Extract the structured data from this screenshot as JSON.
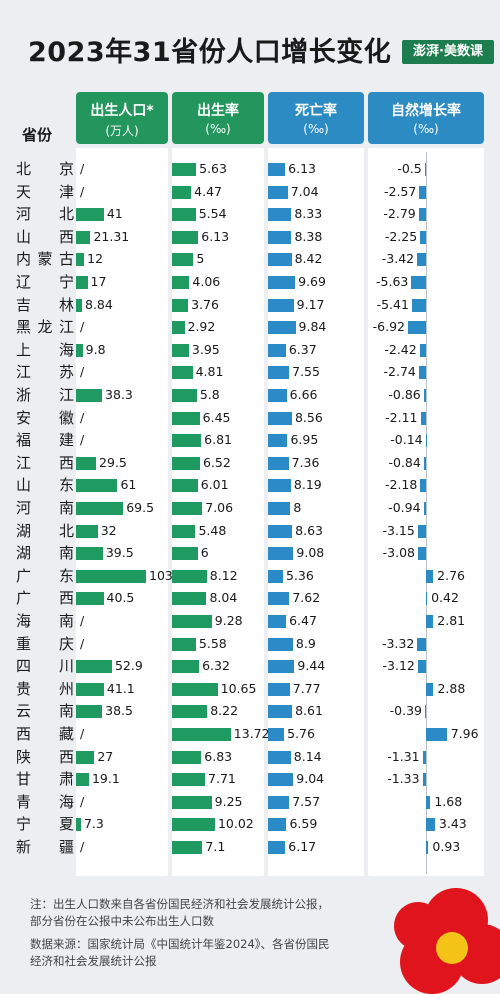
{
  "title": "2023年31省份人口增长变化",
  "logo_text": "澎湃·美数课",
  "row_header": "省份",
  "columns": [
    {
      "name": "出生人口*",
      "unit": "(万人)"
    },
    {
      "name": "出生率",
      "unit": "(‰)"
    },
    {
      "name": "死亡率",
      "unit": "(‰)"
    },
    {
      "name": "自然增长率",
      "unit": "(‰)"
    }
  ],
  "notes": {
    "note": "注：出生人口数来自各省份国民经济和社会发展统计公报，部分省份在公报中未公布出生人口数",
    "source": "数据来源：国家统计局《中国统计年鉴2024》、各省份国民经济和社会发展统计公报"
  },
  "colors": {
    "green": "#1f9a60",
    "blue": "#2b8bc6",
    "header_green": "#23965e",
    "header_blue": "#2d8bc4"
  },
  "chart_data": {
    "type": "table",
    "provinces": [
      "北京",
      "天津",
      "河北",
      "山西",
      "内蒙古",
      "辽宁",
      "吉林",
      "黑龙江",
      "上海",
      "江苏",
      "浙江",
      "安徽",
      "福建",
      "江西",
      "山东",
      "河南",
      "湖北",
      "湖南",
      "广东",
      "广西",
      "海南",
      "重庆",
      "四川",
      "贵州",
      "云南",
      "西藏",
      "陕西",
      "甘肃",
      "青海",
      "宁夏",
      "新疆"
    ],
    "births": [
      null,
      null,
      41,
      21.31,
      12,
      17,
      8.84,
      null,
      9.8,
      null,
      38.3,
      null,
      null,
      29.5,
      61,
      69.5,
      32,
      39.5,
      103,
      40.5,
      null,
      null,
      52.9,
      41.1,
      38.5,
      null,
      27,
      19.1,
      null,
      7.3,
      null
    ],
    "birth_rate": [
      5.63,
      4.47,
      5.54,
      6.13,
      5,
      4.06,
      3.76,
      2.92,
      3.95,
      4.81,
      5.8,
      6.45,
      6.81,
      6.52,
      6.01,
      7.06,
      5.48,
      6,
      8.12,
      8.04,
      9.28,
      5.58,
      6.32,
      10.65,
      8.22,
      13.72,
      6.83,
      7.71,
      9.25,
      10.02,
      7.1
    ],
    "death_rate": [
      6.13,
      7.04,
      8.33,
      8.38,
      8.42,
      9.69,
      9.17,
      9.84,
      6.37,
      7.55,
      6.66,
      8.56,
      6.95,
      7.36,
      8.19,
      8,
      8.63,
      9.08,
      5.36,
      7.62,
      6.47,
      8.9,
      9.44,
      7.77,
      8.61,
      5.76,
      8.14,
      9.04,
      7.57,
      6.59,
      6.17
    ],
    "natural_growth": [
      -0.5,
      -2.57,
      -2.79,
      -2.25,
      -3.42,
      -5.63,
      -5.41,
      -6.92,
      -2.42,
      -2.74,
      -0.86,
      -2.11,
      -0.14,
      -0.84,
      -2.18,
      -0.94,
      -3.15,
      -3.08,
      2.76,
      0.42,
      2.81,
      -3.32,
      -3.12,
      2.88,
      -0.39,
      7.96,
      -1.31,
      -1.33,
      1.68,
      3.43,
      0.93
    ],
    "missing_marker": "/"
  }
}
